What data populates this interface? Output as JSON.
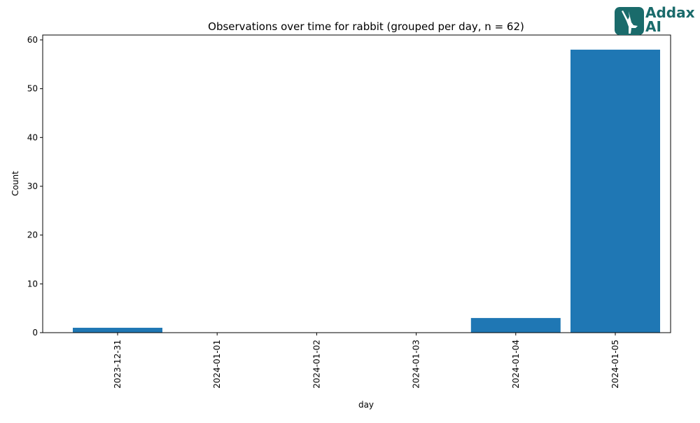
{
  "chart_data": {
    "type": "bar",
    "title": "Observations over time for rabbit (grouped per day, n = 62)",
    "xlabel": "day",
    "ylabel": "Count",
    "categories": [
      "2023-12-31",
      "2024-01-01",
      "2024-01-02",
      "2024-01-03",
      "2024-01-04",
      "2024-01-05"
    ],
    "values": [
      1,
      0,
      0,
      0,
      3,
      58
    ],
    "ylim": [
      0,
      61
    ],
    "yticks": [
      0,
      10,
      20,
      30,
      40,
      50,
      60
    ],
    "bar_color": "#1f77b4",
    "grid": false,
    "legend": "none"
  },
  "logo": {
    "line1": "Addax",
    "line2": "AI",
    "color": "#1a6b6b"
  }
}
